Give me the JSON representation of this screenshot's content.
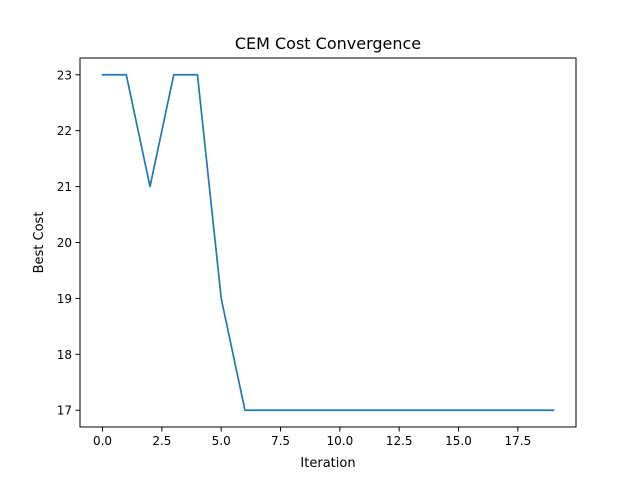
{
  "chart_data": {
    "type": "line",
    "title": "CEM Cost Convergence",
    "xlabel": "Iteration",
    "ylabel": "Best Cost",
    "x": [
      0,
      1,
      2,
      3,
      4,
      5,
      6,
      7,
      8,
      9,
      10,
      11,
      12,
      13,
      14,
      15,
      16,
      17,
      18,
      19
    ],
    "series": [
      {
        "values": [
          23,
          23,
          21,
          23,
          23,
          19,
          17,
          17,
          17,
          17,
          17,
          17,
          17,
          17,
          17,
          17,
          17,
          17,
          17,
          17
        ],
        "color": "#1f77b4"
      }
    ],
    "xlim": [
      -0.95,
      19.95
    ],
    "ylim": [
      16.7,
      23.3
    ],
    "xticks": [
      0,
      2.5,
      5,
      7.5,
      10,
      12.5,
      15,
      17.5
    ],
    "xtick_labels": [
      "0.0",
      "2.5",
      "5.0",
      "7.5",
      "10.0",
      "12.5",
      "15.0",
      "17.5"
    ],
    "yticks": [
      17,
      18,
      19,
      20,
      21,
      22,
      23
    ],
    "ytick_labels": [
      "17",
      "18",
      "19",
      "20",
      "21",
      "22",
      "23"
    ],
    "grid": false,
    "legend": false
  }
}
